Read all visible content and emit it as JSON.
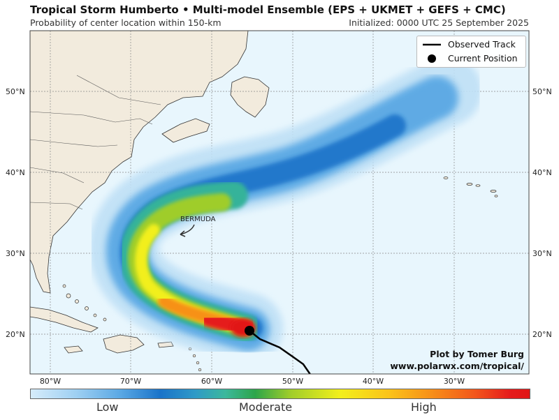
{
  "header": {
    "title": "Tropical Storm Humberto • Multi-model Ensemble (EPS + UKMET + GEFS + CMC)",
    "subtitle": "Probability of center location within 150-km",
    "initialized": "Initialized: 0000 UTC 25 September 2025"
  },
  "map": {
    "projection": "PlateCarree",
    "lon_range": [
      -83,
      -21
    ],
    "lat_range": [
      15,
      58
    ],
    "lat_labels": [
      "20°N",
      "30°N",
      "40°N",
      "50°N"
    ],
    "lon_labels": [
      "80°W",
      "70°W",
      "60°W",
      "50°W",
      "40°W",
      "30°W"
    ],
    "ocean_color": "#e8f6fd",
    "land_color": "#f2ebdd",
    "place_label": "BERMUDA"
  },
  "legend": {
    "observed_track": "Observed Track",
    "current_position": "Current Position"
  },
  "colorbar": {
    "low": "Low",
    "moderate": "Moderate",
    "high": "High"
  },
  "credit": {
    "line1": "Plot by Tomer Burg",
    "line2": "www.polarwx.com/tropical/"
  }
}
